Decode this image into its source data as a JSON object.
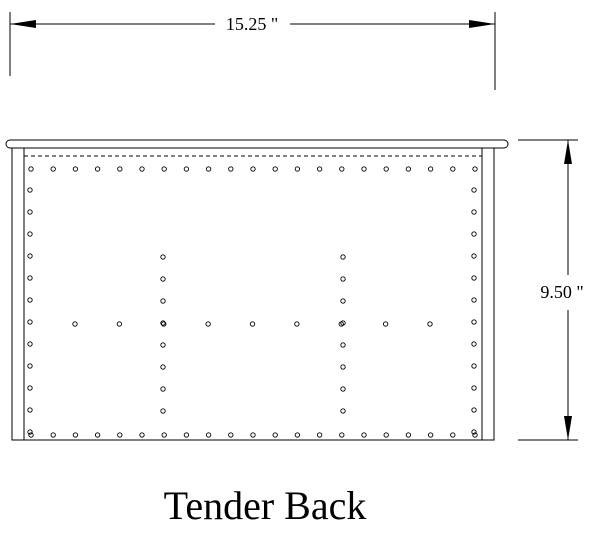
{
  "title": "Tender Back",
  "dimensions": {
    "width_label": "15.25 \"",
    "height_label": "9.50 \""
  },
  "rivets": {
    "top_row_count": 21,
    "bottom_row_count": 21,
    "side_column_count": 12,
    "vertical_strap_rivet_count": 8,
    "center_row_count": 9
  }
}
